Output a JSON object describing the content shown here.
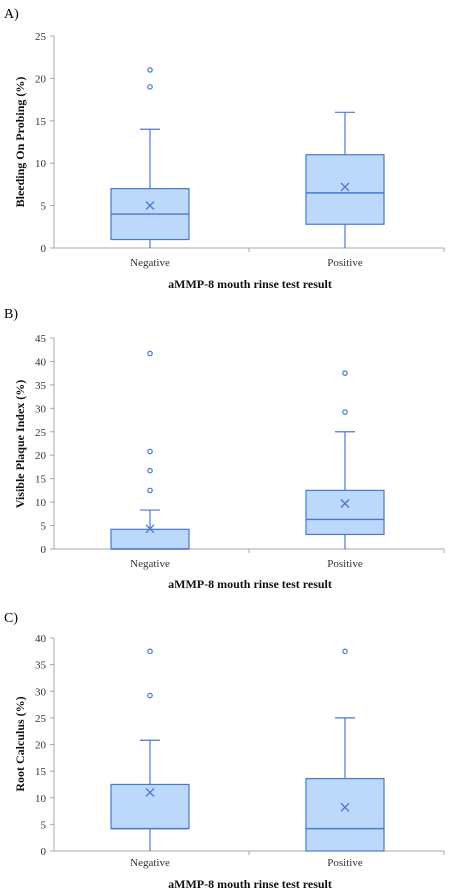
{
  "style": {
    "box_fill": "#bcd8fb",
    "box_stroke": "#4a78d0",
    "axis_color": "#a8a8a8",
    "text_color": "#333333"
  },
  "chart_data": [
    {
      "type": "box",
      "panel": "A)",
      "title": "",
      "xlabel": "aMMP-8 mouth rinse test result",
      "ylabel": "Bleeding On Probing (%)",
      "ylim": [
        0,
        25
      ],
      "yticks": [
        0,
        5,
        10,
        15,
        20,
        25
      ],
      "categories": [
        "Negative",
        "Positive"
      ],
      "boxes": [
        {
          "category": "Negative",
          "min": 0,
          "q1": 1,
          "median": 4,
          "q3": 7,
          "max": 14,
          "mean": 5,
          "outliers": [
            19,
            21
          ]
        },
        {
          "category": "Positive",
          "min": 0,
          "q1": 2.8,
          "median": 6.5,
          "q3": 11,
          "max": 16,
          "mean": 7.2,
          "outliers": []
        }
      ]
    },
    {
      "type": "box",
      "panel": "B)",
      "title": "",
      "xlabel": "aMMP-8 mouth rinse test result",
      "ylabel": "Visible Plaque Index (%)",
      "ylim": [
        0,
        45
      ],
      "yticks": [
        0,
        5,
        10,
        15,
        20,
        25,
        30,
        35,
        40,
        45
      ],
      "categories": [
        "Negative",
        "Positive"
      ],
      "boxes": [
        {
          "category": "Negative",
          "min": 0,
          "q1": 0,
          "median": 0,
          "q3": 4.2,
          "max": 8.3,
          "mean": 4.3,
          "outliers": [
            12.5,
            16.7,
            20.8,
            41.7
          ]
        },
        {
          "category": "Positive",
          "min": 0,
          "q1": 3.1,
          "median": 6.3,
          "q3": 12.5,
          "max": 25,
          "mean": 9.7,
          "outliers": [
            29.2,
            37.5
          ]
        }
      ]
    },
    {
      "type": "box",
      "panel": "C)",
      "title": "",
      "xlabel": "aMMP-8 mouth rinse test result",
      "ylabel": "Root Calculus (%)",
      "ylim": [
        0,
        40
      ],
      "yticks": [
        0,
        5,
        10,
        15,
        20,
        25,
        30,
        35,
        40
      ],
      "categories": [
        "Negative",
        "Positive"
      ],
      "boxes": [
        {
          "category": "Negative",
          "min": 0,
          "q1": 4.2,
          "median": 4.2,
          "q3": 12.5,
          "max": 20.8,
          "mean": 11,
          "outliers": [
            29.2,
            37.5
          ]
        },
        {
          "category": "Positive",
          "min": 0,
          "q1": 0,
          "median": 4.2,
          "q3": 13.6,
          "max": 25,
          "mean": 8.2,
          "outliers": [
            37.5
          ]
        }
      ]
    }
  ]
}
